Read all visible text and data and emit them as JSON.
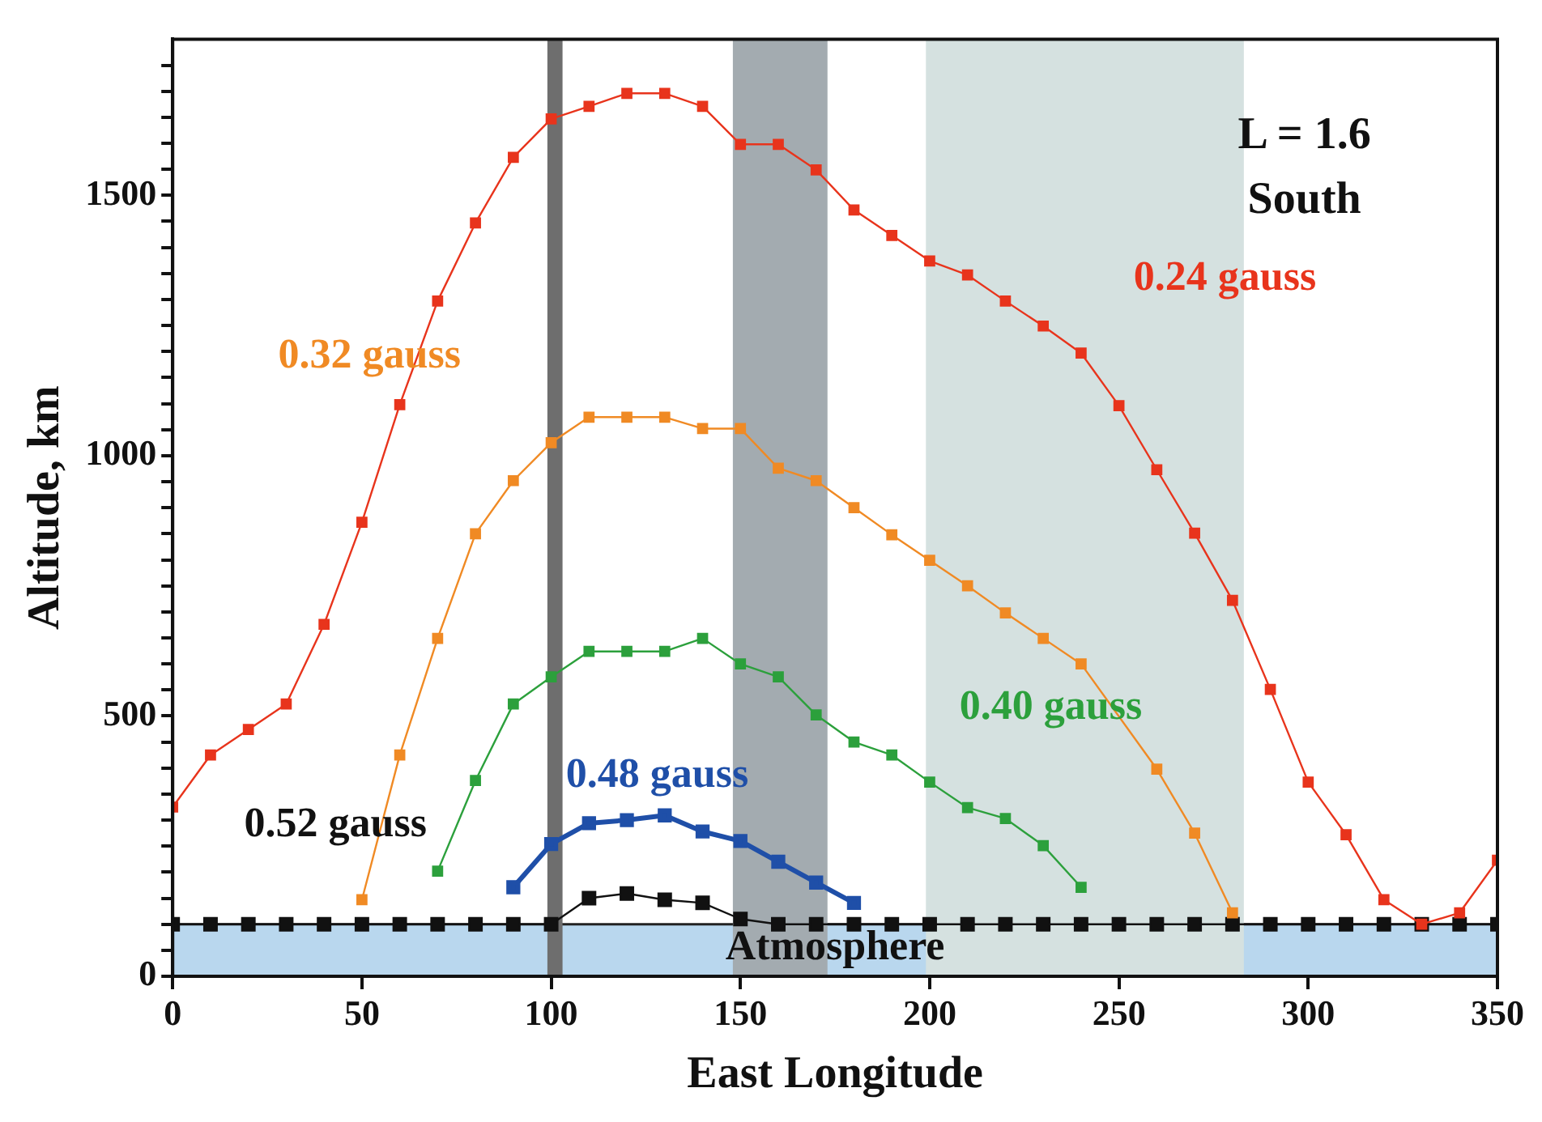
{
  "chart_data": {
    "type": "line",
    "xlabel": "East Longitude",
    "ylabel": "Altitude, km",
    "xlim": [
      0,
      350
    ],
    "xticks": [
      0,
      50,
      100,
      150,
      200,
      250,
      300,
      350
    ],
    "ylim": [
      0,
      1800
    ],
    "yticks": [
      0,
      {
        "value": 50,
        "label": null
      },
      {
        "value": 100,
        "label": null
      },
      {
        "value": 150,
        "label": null
      },
      {
        "value": 200,
        "label": null
      },
      {
        "value": 250,
        "label": null
      },
      {
        "value": 300,
        "label": null
      },
      {
        "value": 350,
        "label": null
      },
      {
        "value": 400,
        "label": null
      },
      {
        "value": 450,
        "label": null
      },
      500,
      {
        "value": 550,
        "label": null
      },
      {
        "value": 600,
        "label": null
      },
      {
        "value": 650,
        "label": null
      },
      {
        "value": 700,
        "label": null
      },
      {
        "value": 750,
        "label": null
      },
      {
        "value": 800,
        "label": null
      },
      {
        "value": 850,
        "label": null
      },
      {
        "value": 900,
        "label": null
      },
      {
        "value": 950,
        "label": null
      },
      1000,
      {
        "value": 1050,
        "label": null
      },
      {
        "value": 1100,
        "label": null
      },
      {
        "value": 1150,
        "label": null
      },
      {
        "value": 1200,
        "label": null
      },
      {
        "value": 1250,
        "label": null
      },
      {
        "value": 1300,
        "label": null
      },
      {
        "value": 1350,
        "label": null
      },
      {
        "value": 1400,
        "label": null
      },
      {
        "value": 1450,
        "label": null
      },
      1500,
      {
        "value": 1550,
        "label": null
      },
      {
        "value": 1600,
        "label": null
      },
      {
        "value": 1650,
        "label": null
      },
      {
        "value": 1700,
        "label": null
      },
      {
        "value": 1750,
        "label": null
      }
    ],
    "marker": "square",
    "legend": false,
    "annotations": [
      "L = 1.6",
      "South"
    ],
    "bands": [
      {
        "axis": "y",
        "from": 0,
        "to": 100,
        "label": "Atmosphere",
        "color": "#b9d7ee"
      },
      {
        "axis": "x",
        "from": 99,
        "to": 103,
        "label": null,
        "color": "#6e6e6e"
      },
      {
        "axis": "x",
        "from": 148,
        "to": 173,
        "label": null,
        "color": "#a3abb0"
      },
      {
        "axis": "x",
        "from": 199,
        "to": 283,
        "label": null,
        "color": "#d5e1e0"
      }
    ],
    "series": [
      {
        "name": "0.24 gauss",
        "color": "#e8341c",
        "x": [
          0,
          10,
          20,
          30,
          40,
          50,
          60,
          70,
          80,
          90,
          100,
          110,
          120,
          130,
          140,
          150,
          160,
          170,
          180,
          190,
          200,
          210,
          220,
          230,
          240,
          250,
          260,
          270,
          280,
          290,
          300,
          310,
          320,
          330,
          340,
          350
        ],
        "values": [
          325,
          425,
          474,
          523,
          676,
          872,
          1098,
          1297,
          1447,
          1573,
          1647,
          1671,
          1696,
          1696,
          1671,
          1598,
          1598,
          1549,
          1472,
          1423,
          1374,
          1347,
          1297,
          1249,
          1197,
          1096,
          973,
          851,
          722,
          551,
          373,
          272,
          147,
          100,
          122,
          223
        ]
      },
      {
        "name": "0.32 gauss",
        "color": "#f08a24",
        "x": [
          50,
          60,
          70,
          80,
          90,
          100,
          110,
          120,
          130,
          140,
          150,
          160,
          170,
          180,
          190,
          200,
          210,
          220,
          230,
          240,
          250,
          260,
          270,
          280
        ],
        "values": [
          147,
          425,
          649,
          850,
          952,
          1025,
          1074,
          1074,
          1074,
          1052,
          1052,
          976,
          952,
          900,
          848,
          799,
          750,
          698,
          649,
          600,
          null,
          398,
          275,
          122
        ]
      },
      {
        "name": "0.40 gauss",
        "color": "#2ca03c",
        "x": [
          70,
          80,
          90,
          100,
          110,
          120,
          130,
          140,
          150,
          160,
          170,
          180,
          190,
          200,
          210,
          220,
          230,
          240
        ],
        "values": [
          202,
          376,
          523,
          575,
          624,
          624,
          624,
          649,
          600,
          575,
          502,
          450,
          425,
          373,
          324,
          303,
          251,
          171
        ]
      },
      {
        "name": "0.48 gauss",
        "color": "#1f4fa8",
        "x": [
          90,
          100,
          110,
          120,
          130,
          140,
          150,
          160,
          170,
          180
        ],
        "values": [
          171,
          254,
          294,
          300,
          309,
          278,
          260,
          220,
          180,
          141
        ]
      },
      {
        "name": "0.52 gauss",
        "color": "#111111",
        "x": [
          0,
          10,
          20,
          30,
          40,
          50,
          60,
          70,
          80,
          90,
          100,
          110,
          120,
          130,
          140,
          150,
          160,
          170,
          180,
          190,
          200,
          210,
          220,
          230,
          240,
          250,
          260,
          270,
          280,
          290,
          300,
          310,
          320,
          330,
          340,
          350
        ],
        "values": [
          100,
          100,
          100,
          100,
          100,
          100,
          100,
          100,
          100,
          100,
          100,
          150,
          159,
          147,
          141,
          110,
          100,
          100,
          100,
          100,
          100,
          100,
          100,
          100,
          100,
          100,
          100,
          100,
          100,
          100,
          100,
          100,
          100,
          100,
          100,
          100
        ]
      }
    ]
  }
}
